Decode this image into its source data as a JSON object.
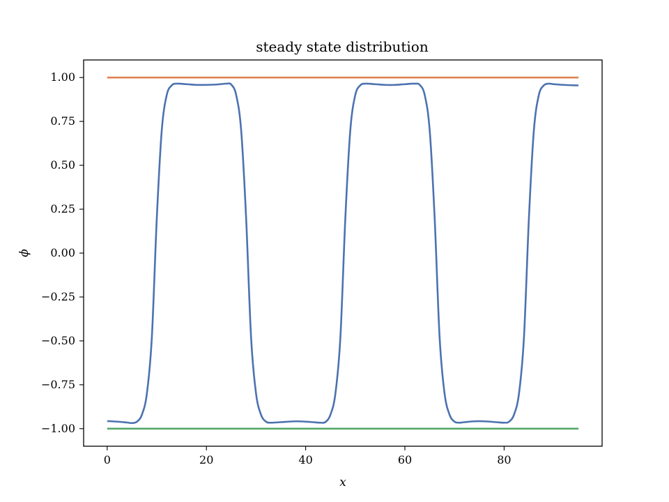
{
  "chart_data": {
    "type": "line",
    "title": "steady state distribution",
    "xlabel": "x",
    "ylabel": "ϕ",
    "xlim": [
      -4.75,
      99.75
    ],
    "ylim": [
      -1.1,
      1.1
    ],
    "grid": false,
    "legend": "none",
    "xticks": [
      0,
      20,
      40,
      60,
      80
    ],
    "xtick_labels": [
      "0",
      "20",
      "40",
      "60",
      "80"
    ],
    "yticks": [
      1.0,
      0.75,
      0.5,
      0.25,
      0.0,
      -0.25,
      -0.5,
      -0.75,
      -1.0
    ],
    "ytick_labels": [
      "1.00",
      "0.75",
      "0.50",
      "0.25",
      "0.00",
      "−0.25",
      "−0.50",
      "−0.75",
      "−1.00"
    ],
    "series": [
      {
        "color": "#4c72b0",
        "x": [
          0,
          2,
          4,
          5,
          6,
          7,
          8,
          9,
          10,
          11,
          12,
          13,
          14,
          16,
          18,
          20,
          22,
          24,
          25,
          26,
          27,
          28,
          29,
          30,
          31,
          32,
          33,
          35,
          38,
          41,
          43,
          44,
          45,
          46,
          47,
          48,
          49,
          50,
          51,
          52,
          54,
          56,
          58,
          60,
          62,
          63,
          64,
          65,
          66,
          67,
          68,
          69,
          70,
          71,
          72,
          74,
          76,
          78,
          80,
          81,
          82,
          83,
          84,
          85,
          86,
          87,
          88,
          89,
          90,
          92,
          95
        ],
        "y": [
          -0.957,
          -0.96,
          -0.965,
          -0.968,
          -0.96,
          -0.92,
          -0.8,
          -0.48,
          0.2,
          0.7,
          0.9,
          0.955,
          0.965,
          0.962,
          0.958,
          0.958,
          0.96,
          0.965,
          0.96,
          0.9,
          0.7,
          0.2,
          -0.48,
          -0.8,
          -0.92,
          -0.96,
          -0.966,
          -0.963,
          -0.958,
          -0.962,
          -0.966,
          -0.962,
          -0.92,
          -0.8,
          -0.48,
          0.2,
          0.7,
          0.9,
          0.955,
          0.965,
          0.962,
          0.958,
          0.958,
          0.962,
          0.965,
          0.958,
          0.9,
          0.7,
          0.2,
          -0.48,
          -0.8,
          -0.92,
          -0.96,
          -0.966,
          -0.963,
          -0.958,
          -0.958,
          -0.962,
          -0.966,
          -0.96,
          -0.92,
          -0.8,
          -0.48,
          0.2,
          0.7,
          0.9,
          0.955,
          0.965,
          0.962,
          0.958,
          0.955
        ]
      },
      {
        "color": "#dd8452",
        "x": [
          0,
          95
        ],
        "y": [
          1.0,
          1.0
        ]
      },
      {
        "color": "#55a868",
        "x": [
          0,
          95
        ],
        "y": [
          -1.0,
          -1.0
        ]
      }
    ]
  }
}
